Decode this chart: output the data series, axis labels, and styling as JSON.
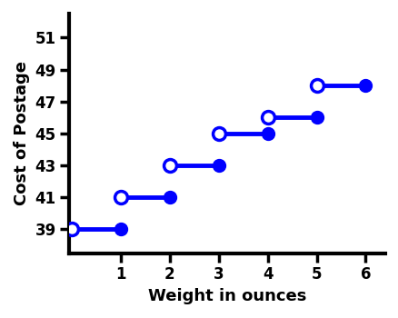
{
  "segments": [
    {
      "x_start": 0,
      "x_end": 1,
      "y": 39
    },
    {
      "x_start": 1,
      "x_end": 2,
      "y": 41
    },
    {
      "x_start": 2,
      "x_end": 3,
      "y": 43
    },
    {
      "x_start": 3,
      "x_end": 4,
      "y": 45
    },
    {
      "x_start": 4,
      "x_end": 5,
      "y": 46
    },
    {
      "x_start": 5,
      "x_end": 6,
      "y": 48
    }
  ],
  "line_color": "#0000FF",
  "line_width": 3.5,
  "closed_marker_size": 10,
  "open_marker_size": 10,
  "xlabel": "Weight in ounces",
  "ylabel": "Cost of Postage",
  "xlim": [
    -0.05,
    6.4
  ],
  "ylim": [
    37.5,
    52.5
  ],
  "xticks": [
    1,
    2,
    3,
    4,
    5,
    6
  ],
  "yticks": [
    39,
    41,
    43,
    45,
    47,
    49,
    51
  ],
  "xlabel_fontsize": 13,
  "ylabel_fontsize": 13,
  "tick_fontsize": 12,
  "tick_fontweight": "bold",
  "label_fontweight": "bold",
  "spine_linewidth": 3.0,
  "markeredgewidth": 2.5
}
